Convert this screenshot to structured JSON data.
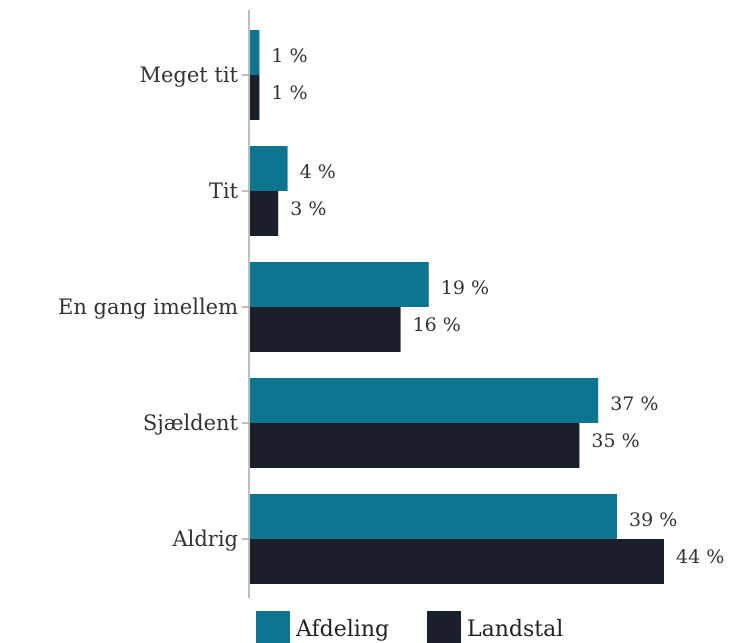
{
  "chart_data": {
    "type": "bar",
    "orientation": "horizontal",
    "categories": [
      "Meget tit",
      "Tit",
      "En gang imellem",
      "Sjældent",
      "Aldrig"
    ],
    "series": [
      {
        "name": "Afdeling",
        "color": "#0d7590",
        "values": [
          1,
          4,
          19,
          37,
          39
        ],
        "value_labels": [
          "1 %",
          "4 %",
          "19 %",
          "37 %",
          "39 %"
        ]
      },
      {
        "name": "Landstal",
        "color": "#1b1f29",
        "values": [
          1,
          3,
          16,
          35,
          44
        ],
        "value_labels": [
          "1 %",
          "3 %",
          "16 %",
          "35 %",
          "44 %"
        ]
      }
    ],
    "xlim": [
      0,
      45
    ],
    "grid": false,
    "legend_position": "bottom"
  }
}
